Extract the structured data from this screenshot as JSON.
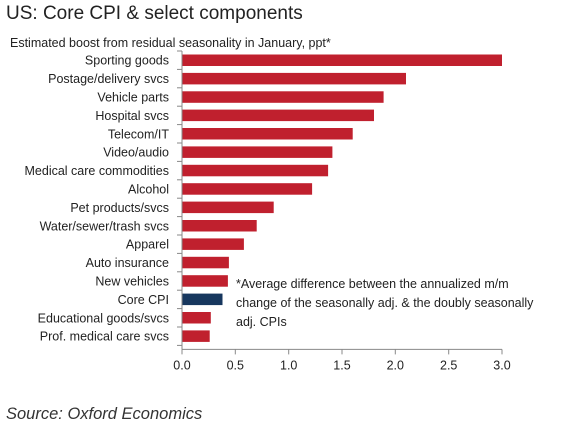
{
  "chart_data": {
    "type": "bar",
    "orientation": "horizontal",
    "title": "US: Core CPI & select components",
    "subtitle": "Estimated boost from residual seasonality in January, ppt*",
    "categories": [
      "Sporting goods",
      "Postage/delivery svcs",
      "Vehicle parts",
      "Hospital svcs",
      "Telecom/IT",
      "Video/audio",
      "Medical care commodities",
      "Alcohol",
      "Pet products/svcs",
      "Water/sewer/trash svcs",
      "Apparel",
      "Auto insurance",
      "New vehicles",
      "Core CPI",
      "Educational goods/svcs",
      "Prof. medical care svcs"
    ],
    "values": [
      3.0,
      2.1,
      1.89,
      1.8,
      1.6,
      1.41,
      1.37,
      1.22,
      0.86,
      0.7,
      0.58,
      0.44,
      0.43,
      0.38,
      0.27,
      0.26
    ],
    "highlight": "Core CPI",
    "xlim": [
      0,
      3.0
    ],
    "xticks": [
      "0.0",
      "0.5",
      "1.0",
      "1.5",
      "2.0",
      "2.5",
      "3.0"
    ],
    "grid": false,
    "note": "*Average difference between the annualized m/m change of the seasonally adj. & the doubly seasonally adj. CPIs",
    "source": "Source: Oxford Economics",
    "colors": {
      "bar": "#c0202e",
      "highlight": "#17375e",
      "axis": "#888888"
    }
  }
}
